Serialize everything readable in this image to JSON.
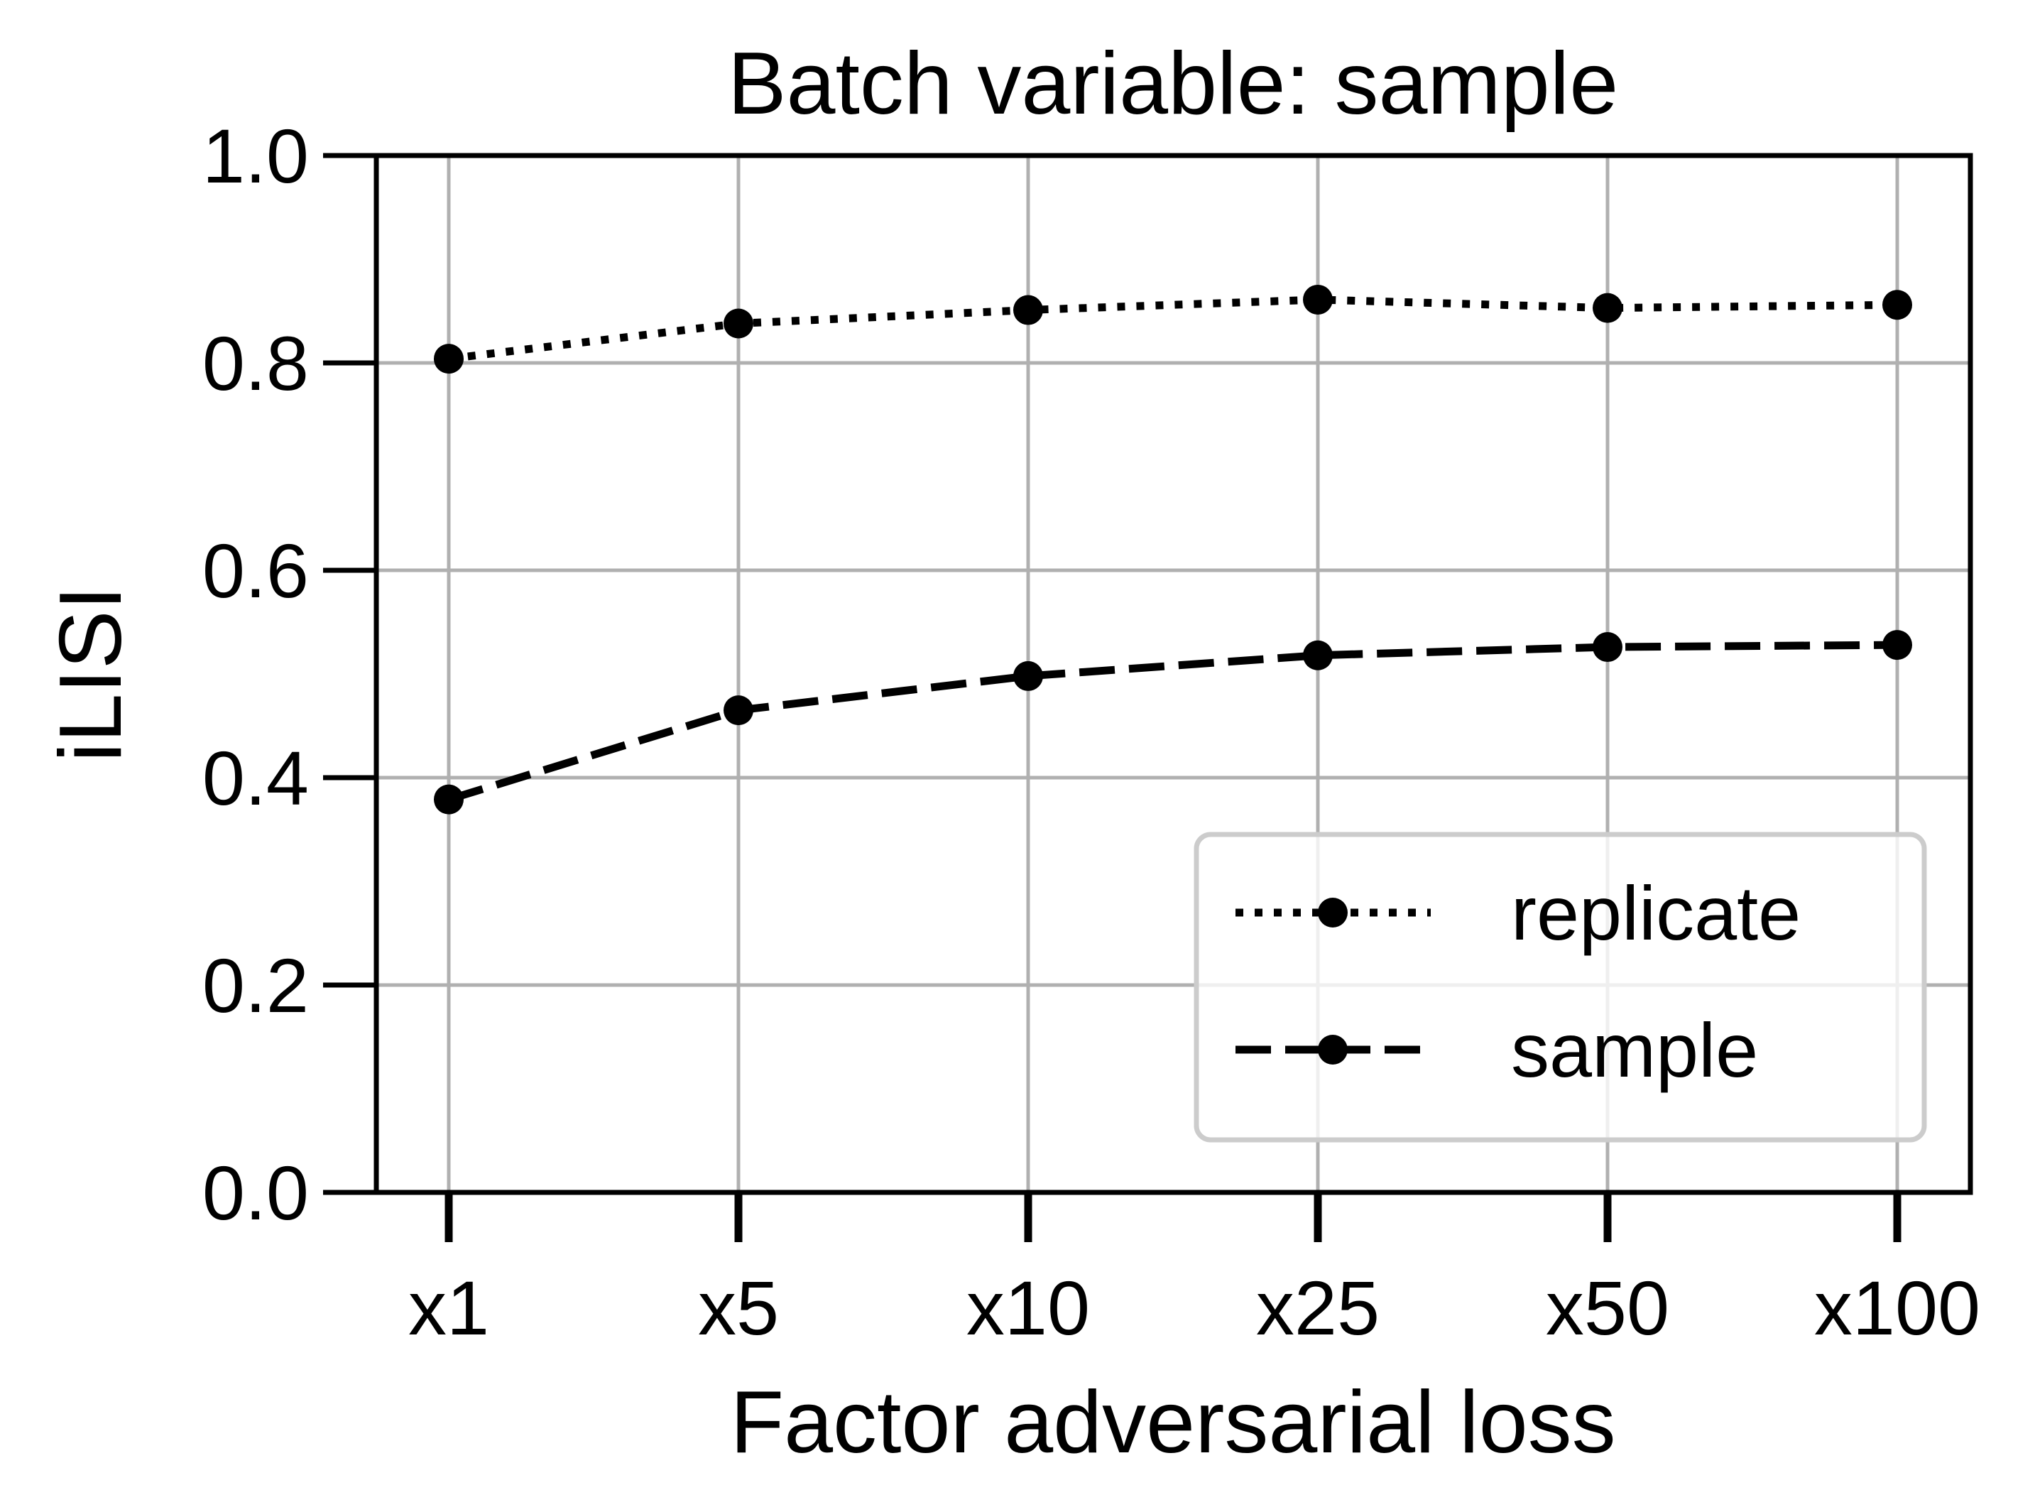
{
  "chart_data": {
    "type": "line",
    "title": "Batch variable: sample",
    "xlabel": "Factor adversarial loss",
    "ylabel": "iLISI",
    "categories": [
      "x1",
      "x5",
      "x10",
      "x25",
      "x50",
      "x100"
    ],
    "ylim": [
      0.0,
      1.0
    ],
    "yticks": [
      "0.0",
      "0.2",
      "0.4",
      "0.6",
      "0.8",
      "1.0"
    ],
    "grid": true,
    "legend_position": "lower-right",
    "series": [
      {
        "name": "replicate",
        "style": "dotted",
        "color": "#000000",
        "values": [
          0.804,
          0.838,
          0.851,
          0.861,
          0.853,
          0.856
        ]
      },
      {
        "name": "sample",
        "style": "dashed",
        "color": "#000000",
        "values": [
          0.379,
          0.465,
          0.498,
          0.518,
          0.526,
          0.528
        ]
      }
    ],
    "grid_color": "#b0b0b0"
  }
}
